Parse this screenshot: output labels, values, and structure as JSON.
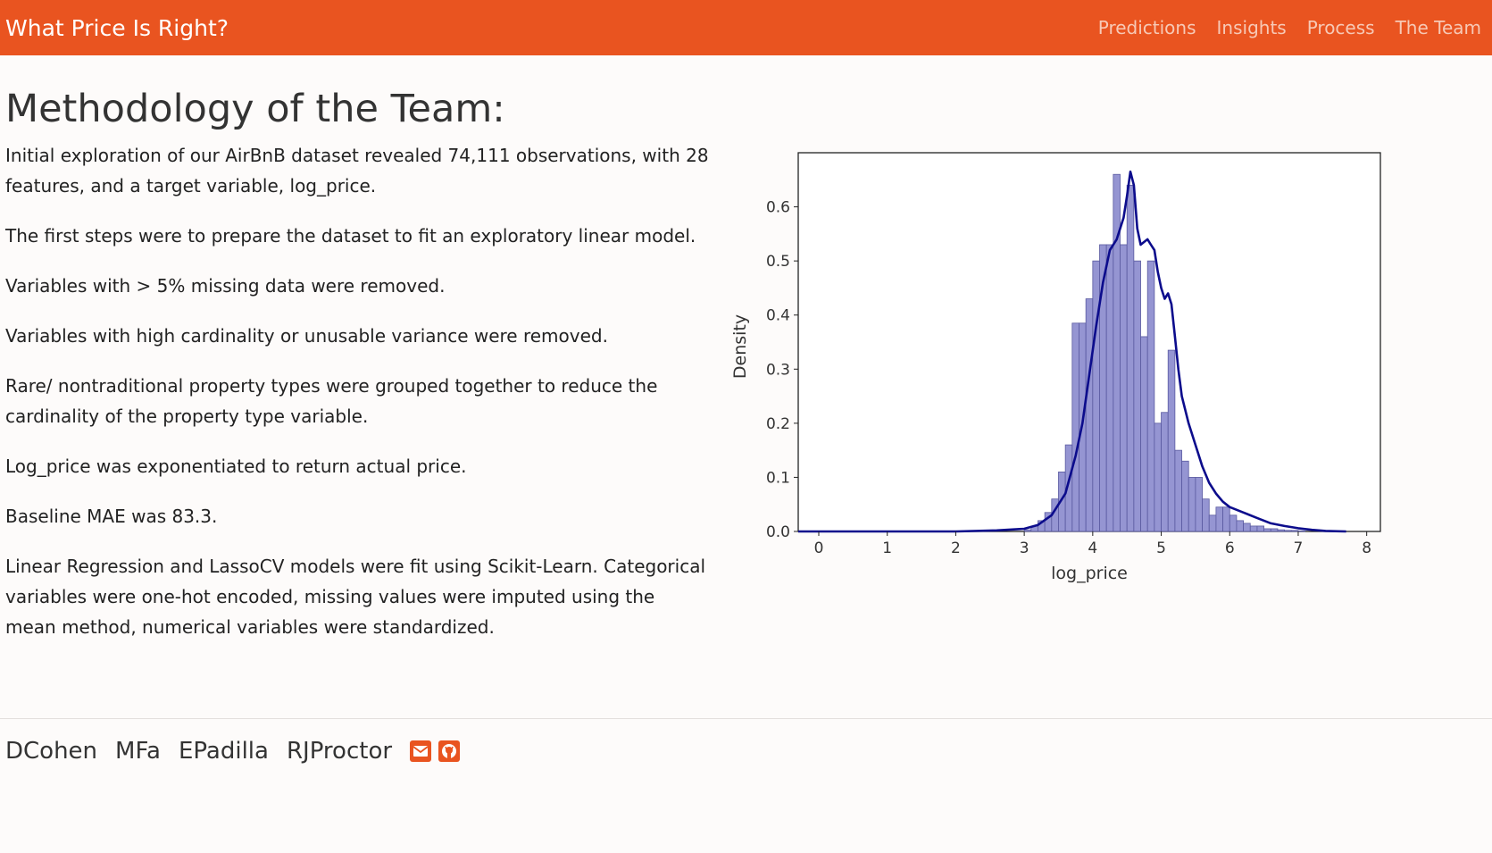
{
  "navbar": {
    "brand": "What Price Is Right?",
    "links": [
      "Predictions",
      "Insights",
      "Process",
      "The Team"
    ]
  },
  "main": {
    "title": "Methodology of the Team:",
    "paragraphs": [
      "Initial exploration of our AirBnB dataset revealed 74,111 observations, with 28 features, and a target variable, log_price.",
      "The first steps were to prepare the dataset to fit an exploratory linear model.",
      "Variables with > 5% missing data were removed.",
      "Variables with high cardinality or unusable variance were removed.",
      "Rare/ nontraditional property types were grouped together to reduce the cardinality of the property type variable.",
      "Log_price was exponentiated to return actual price.",
      "Baseline MAE was 83.3.",
      "Linear Regression and LassoCV models were fit using Scikit-Learn. Categorical variables were one-hot encoded, missing values were imputed using the mean method, numerical variables were standardized."
    ]
  },
  "chart_data": {
    "type": "bar",
    "xlabel": "log_price",
    "ylabel": "Density",
    "xlim": [
      -0.3,
      8.2
    ],
    "ylim": [
      0,
      0.7
    ],
    "xticks": [
      "0",
      "1",
      "2",
      "3",
      "4",
      "5",
      "6",
      "7",
      "8"
    ],
    "yticks": [
      "0.0",
      "0.1",
      "0.2",
      "0.3",
      "0.4",
      "0.5",
      "0.6"
    ],
    "grid": false,
    "bin_width": 0.1,
    "hist_x": [
      3.0,
      3.1,
      3.2,
      3.3,
      3.4,
      3.5,
      3.6,
      3.7,
      3.8,
      3.9,
      4.0,
      4.1,
      4.2,
      4.3,
      4.4,
      4.5,
      4.6,
      4.7,
      4.8,
      4.9,
      5.0,
      5.1,
      5.2,
      5.3,
      5.4,
      5.5,
      5.6,
      5.7,
      5.8,
      5.9,
      6.0,
      6.1,
      6.2,
      6.3,
      6.4,
      6.5,
      6.6,
      6.7,
      6.8,
      6.9,
      7.0
    ],
    "hist_values": [
      0.003,
      0.01,
      0.02,
      0.035,
      0.06,
      0.11,
      0.16,
      0.385,
      0.385,
      0.43,
      0.5,
      0.53,
      0.53,
      0.66,
      0.53,
      0.64,
      0.5,
      0.36,
      0.5,
      0.2,
      0.22,
      0.335,
      0.15,
      0.13,
      0.1,
      0.1,
      0.06,
      0.03,
      0.045,
      0.045,
      0.03,
      0.02,
      0.015,
      0.01,
      0.01,
      0.005,
      0.005,
      0.003,
      0.002,
      0.002,
      0.001
    ],
    "kde_x": [
      -0.3,
      2.0,
      2.6,
      3.0,
      3.2,
      3.4,
      3.6,
      3.75,
      3.85,
      3.95,
      4.05,
      4.15,
      4.25,
      4.35,
      4.45,
      4.5,
      4.55,
      4.6,
      4.65,
      4.7,
      4.75,
      4.8,
      4.85,
      4.9,
      4.95,
      5.0,
      5.05,
      5.1,
      5.15,
      5.2,
      5.25,
      5.3,
      5.4,
      5.5,
      5.6,
      5.7,
      5.8,
      5.9,
      6.0,
      6.2,
      6.4,
      6.6,
      6.8,
      7.0,
      7.2,
      7.4,
      7.7
    ],
    "kde_values": [
      0.0,
      0.0,
      0.002,
      0.005,
      0.012,
      0.03,
      0.07,
      0.14,
      0.2,
      0.29,
      0.38,
      0.46,
      0.52,
      0.54,
      0.58,
      0.62,
      0.665,
      0.64,
      0.56,
      0.53,
      0.535,
      0.54,
      0.53,
      0.52,
      0.48,
      0.45,
      0.43,
      0.44,
      0.42,
      0.36,
      0.3,
      0.25,
      0.2,
      0.16,
      0.12,
      0.09,
      0.07,
      0.055,
      0.045,
      0.035,
      0.025,
      0.015,
      0.01,
      0.006,
      0.003,
      0.001,
      0.0
    ],
    "colors": {
      "bars": "#8f8fd0",
      "bar_edge": "#5a5aa0",
      "kde": "#0c0c8c"
    }
  },
  "footer": {
    "names": [
      "DCohen",
      "MFa",
      "EPadilla",
      "RJProctor"
    ],
    "icons": [
      "envelope-icon",
      "github-icon"
    ]
  }
}
